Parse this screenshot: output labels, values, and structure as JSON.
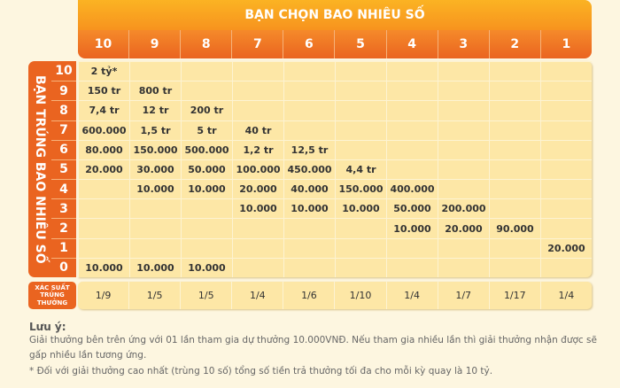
{
  "header": {
    "title": "BẠN CHỌN BAO NHIÊU SỐ",
    "columns": [
      "10",
      "9",
      "8",
      "7",
      "6",
      "5",
      "4",
      "3",
      "2",
      "1"
    ]
  },
  "side": {
    "label": "BẠN TRÚNG BAO NHIÊU SỐ",
    "rows": [
      "10",
      "9",
      "8",
      "7",
      "6",
      "5",
      "4",
      "3",
      "2",
      "1",
      "0"
    ]
  },
  "prizes": [
    [
      "2 tỷ*",
      "",
      "",
      "",
      "",
      "",
      "",
      "",
      "",
      ""
    ],
    [
      "150 tr",
      "800 tr",
      "",
      "",
      "",
      "",
      "",
      "",
      "",
      ""
    ],
    [
      "7,4 tr",
      "12 tr",
      "200 tr",
      "",
      "",
      "",
      "",
      "",
      "",
      ""
    ],
    [
      "600.000",
      "1,5 tr",
      "5 tr",
      "40 tr",
      "",
      "",
      "",
      "",
      "",
      ""
    ],
    [
      "80.000",
      "150.000",
      "500.000",
      "1,2 tr",
      "12,5 tr",
      "",
      "",
      "",
      "",
      ""
    ],
    [
      "20.000",
      "30.000",
      "50.000",
      "100.000",
      "450.000",
      "4,4 tr",
      "",
      "",
      "",
      ""
    ],
    [
      "",
      "10.000",
      "10.000",
      "20.000",
      "40.000",
      "150.000",
      "400.000",
      "",
      "",
      ""
    ],
    [
      "",
      "",
      "",
      "10.000",
      "10.000",
      "10.000",
      "50.000",
      "200.000",
      "",
      ""
    ],
    [
      "",
      "",
      "",
      "",
      "",
      "",
      "10.000",
      "20.000",
      "90.000",
      ""
    ],
    [
      "",
      "",
      "",
      "",
      "",
      "",
      "",
      "",
      "",
      "20.000"
    ],
    [
      "10.000",
      "10.000",
      "10.000",
      "",
      "",
      "",
      "",
      "",
      "",
      ""
    ]
  ],
  "probability": {
    "label_lines": [
      "XÁC SUẤT",
      "TRÚNG",
      "THƯỞNG"
    ],
    "values": [
      "1/9",
      "1/5",
      "1/5",
      "1/4",
      "1/6",
      "1/10",
      "1/4",
      "1/7",
      "1/17",
      "1/4"
    ]
  },
  "notes": {
    "title": "Lưu ý:",
    "line1": "Giải thưởng bên trên ứng với 01 lần tham gia dự thưởng 10.000VNĐ. Nếu tham gia nhiều lần thì giải thưởng nhận được sẽ gấp nhiều lần tương ứng.",
    "line2": "*  Đối với giải thưởng cao nhất (trùng 10 số) tổng số tiền trả thưởng tối đa cho mỗi kỳ quay là 10 tỷ."
  },
  "colors": {
    "orange": "#ea6420",
    "header_yellow": "#fbb323",
    "cell_bg": "#fde7a6",
    "page_bg": "#fdf6e0"
  }
}
